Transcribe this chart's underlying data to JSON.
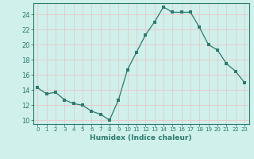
{
  "x": [
    0,
    1,
    2,
    3,
    4,
    5,
    6,
    7,
    8,
    9,
    10,
    11,
    12,
    13,
    14,
    15,
    16,
    17,
    18,
    19,
    20,
    21,
    22,
    23
  ],
  "y": [
    14.3,
    13.5,
    13.7,
    12.7,
    12.2,
    12.0,
    11.2,
    10.8,
    10.0,
    12.7,
    16.7,
    19.0,
    21.3,
    23.0,
    25.0,
    24.3,
    24.3,
    24.3,
    22.3,
    20.0,
    19.3,
    17.5,
    16.5,
    15.0
  ],
  "line_color": "#2d7a6e",
  "marker": "s",
  "marker_size": 2.5,
  "bg_color": "#cff0eb",
  "grid_color": "#e8c8c8",
  "xlabel": "Humidex (Indice chaleur)",
  "xlim": [
    -0.5,
    23.5
  ],
  "ylim": [
    9.5,
    25.5
  ],
  "yticks": [
    10,
    12,
    14,
    16,
    18,
    20,
    22,
    24
  ],
  "xtick_labels": [
    "0",
    "1",
    "2",
    "3",
    "4",
    "5",
    "6",
    "7",
    "8",
    "9",
    "10",
    "11",
    "12",
    "13",
    "14",
    "15",
    "16",
    "17",
    "18",
    "19",
    "20",
    "21",
    "22",
    "23"
  ],
  "tick_color": "#2d7a6e",
  "axis_color": "#2d7a6e"
}
